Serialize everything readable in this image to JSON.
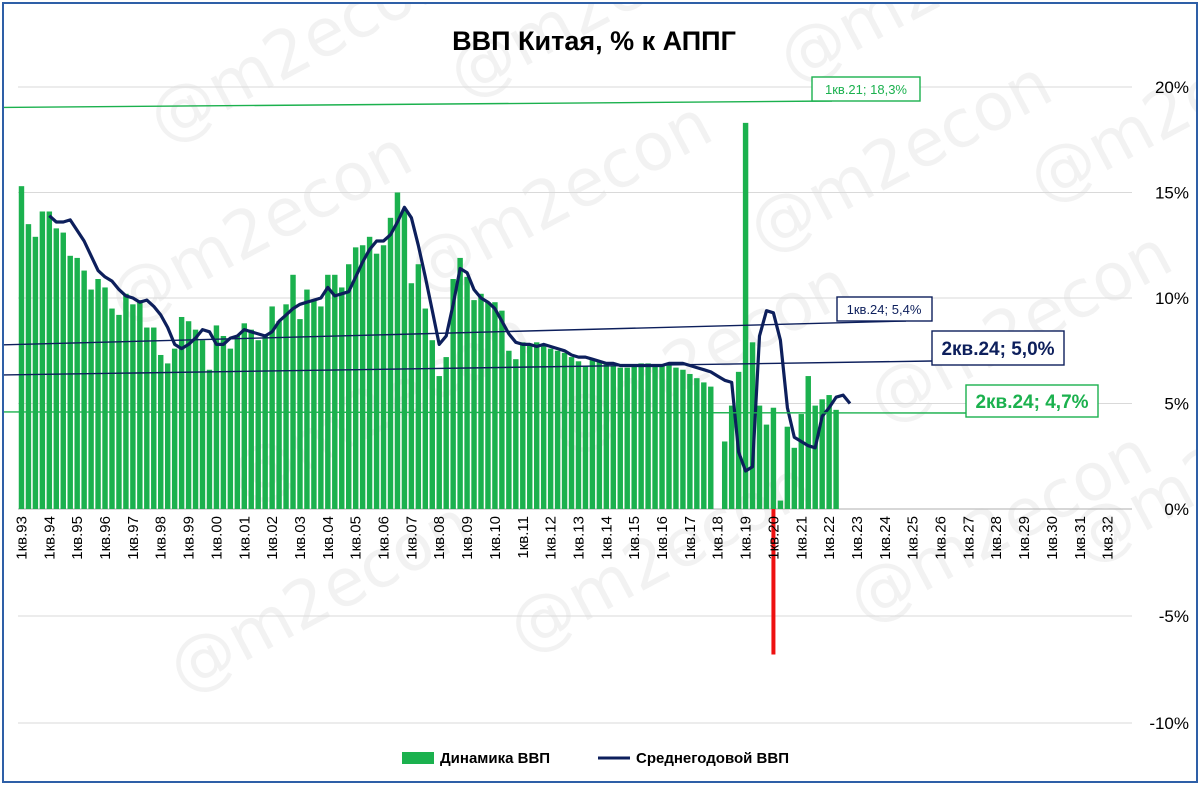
{
  "colors": {
    "bar": "#1bb14e",
    "line": "#0d1f5c",
    "grid": "#d9d9d9",
    "covid_marker": "#ee1111",
    "annotation_green": "#1bb14e",
    "annotation_navy": "#0d1f5c"
  },
  "watermark": "@m2econ",
  "chart_data": {
    "type": "bar",
    "title": "ВВП Китая, % к АППГ",
    "ylim": [
      -10,
      20
    ],
    "yticks": [
      "20%",
      "15%",
      "10%",
      "5%",
      "0%",
      "-5%",
      "-10%"
    ],
    "grid": true,
    "legend_position": "bottom",
    "x_labels": [
      "1кв.93",
      "1кв.94",
      "1кв.95",
      "1кв.96",
      "1кв.97",
      "1кв.98",
      "1кв.99",
      "1кв.00",
      "1кв.01",
      "1кв.02",
      "1кв.03",
      "1кв.04",
      "1кв.05",
      "1кв.06",
      "1кв.07",
      "1кв.08",
      "1кв.09",
      "1кв.10",
      "1кв.11",
      "1кв.12",
      "1кв.13",
      "1кв.14",
      "1кв.15",
      "1кв.16",
      "1кв.17",
      "1кв.18",
      "1кв.19",
      "1кв.20",
      "1кв.21",
      "1кв.22",
      "1кв.23",
      "1кв.24",
      "1кв.25",
      "1кв.26",
      "1кв.27",
      "1кв.28",
      "1кв.29",
      "1кв.30",
      "1кв.31",
      "1кв.32"
    ],
    "series": [
      {
        "name": "Динамика ВВП",
        "kind": "bar",
        "start_label": "1кв.93",
        "values": [
          15.3,
          13.5,
          12.9,
          14.1,
          14.1,
          13.3,
          13.1,
          12.0,
          11.9,
          11.3,
          10.4,
          10.9,
          10.5,
          9.5,
          9.2,
          10.2,
          9.7,
          9.9,
          8.6,
          8.6,
          7.3,
          6.9,
          7.6,
          9.1,
          8.9,
          8.5,
          8.0,
          6.6,
          8.7,
          8.2,
          7.6,
          8.2,
          8.8,
          8.5,
          8.0,
          8.2,
          9.6,
          8.9,
          9.7,
          11.1,
          9.0,
          10.4,
          9.9,
          9.6,
          11.1,
          11.1,
          10.5,
          11.6,
          12.4,
          12.5,
          12.9,
          12.1,
          12.5,
          13.8,
          15.0,
          14.2,
          10.7,
          11.6,
          9.5,
          8.0,
          6.3,
          7.2,
          10.9,
          11.9,
          11.0,
          9.9,
          10.2,
          9.8,
          9.8,
          9.4,
          7.5,
          7.1,
          7.9,
          7.8,
          7.9,
          7.7,
          7.6,
          7.5,
          7.4,
          7.2,
          7.0,
          6.8,
          7.1,
          7.0,
          6.9,
          6.8,
          6.7,
          6.7,
          6.8,
          6.9,
          6.9,
          6.8,
          6.8,
          6.8,
          6.7,
          6.6,
          6.4,
          6.2,
          6.0,
          5.8,
          -6.8,
          3.2,
          4.9,
          6.5,
          18.3,
          7.9,
          4.9,
          4.0,
          4.8,
          0.4,
          3.9,
          2.9,
          4.5,
          6.3,
          4.9,
          5.2,
          5.4,
          4.7
        ]
      },
      {
        "name": "Среднегодовой ВВП",
        "kind": "line",
        "start_label": "1кв.94",
        "values": [
          13.9,
          13.6,
          13.6,
          13.7,
          13.2,
          12.7,
          12.0,
          11.3,
          11.0,
          10.8,
          10.4,
          10.1,
          10.0,
          9.8,
          9.9,
          9.6,
          9.2,
          8.6,
          7.8,
          7.6,
          7.8,
          8.1,
          8.5,
          8.4,
          7.8,
          7.8,
          8.1,
          8.2,
          8.5,
          8.4,
          8.3,
          8.2,
          8.4,
          8.9,
          9.2,
          9.5,
          9.7,
          9.8,
          9.9,
          10.0,
          10.5,
          10.1,
          10.2,
          10.3,
          11.0,
          11.7,
          12.3,
          12.7,
          12.7,
          13.0,
          13.6,
          14.3,
          13.8,
          12.5,
          11.0,
          9.4,
          7.8,
          8.2,
          9.7,
          11.4,
          11.2,
          10.4,
          10.0,
          9.8,
          9.5,
          8.9,
          8.3,
          7.9,
          7.8,
          7.8,
          7.7,
          7.8,
          7.7,
          7.6,
          7.5,
          7.3,
          7.2,
          7.2,
          7.1,
          7.0,
          6.9,
          6.9,
          6.8,
          6.8,
          6.8,
          6.8,
          6.8,
          6.8,
          6.8,
          6.9,
          6.9,
          6.9,
          6.8,
          6.7,
          6.6,
          6.5,
          6.3,
          6.1,
          6.0,
          2.7,
          1.8,
          2.0,
          8.2,
          9.4,
          9.3,
          8.0,
          4.8,
          3.4,
          3.2,
          3.0,
          2.9,
          4.4,
          4.8,
          5.3,
          5.4,
          5.0
        ]
      }
    ],
    "covid_marker": {
      "at": "1кв.20",
      "from": 0,
      "to": -6.8
    },
    "annotations": [
      {
        "label": "1кв.21; 18,3%",
        "point": "1кв.21",
        "value": 18.3,
        "series": "Динамика ВВП",
        "style": "small",
        "color": "green"
      },
      {
        "label": "1кв.24; 5,4%",
        "point": "1кв.24",
        "value": 5.4,
        "series": "Среднегодовой ВВП",
        "style": "small",
        "color": "navy"
      },
      {
        "label": "2кв.24; 5,0%",
        "point": "2кв.24",
        "value": 5.0,
        "series": "Среднегодовой ВВП",
        "style": "big",
        "color": "navy"
      },
      {
        "label": "2кв.24; 4,7%",
        "point": "2кв.24",
        "value": 4.7,
        "series": "Динамика ВВП",
        "style": "big",
        "color": "green"
      }
    ]
  }
}
